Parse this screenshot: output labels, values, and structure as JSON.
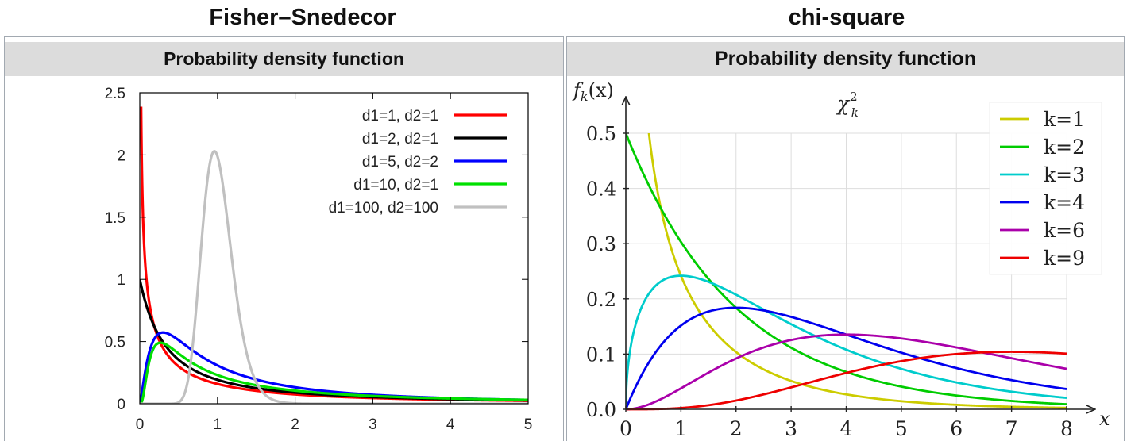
{
  "titles": {
    "left": "Fisher–Snedecor",
    "right": "chi-square"
  },
  "panels": {
    "left_header": "Probability density function",
    "right_header": "Probability density function"
  },
  "chart_data": [
    {
      "type": "line",
      "xlim": [
        0,
        5
      ],
      "ylim": [
        0,
        2.5
      ],
      "x_ticks": [
        "0",
        "1",
        "2",
        "3",
        "4",
        "5"
      ],
      "y_ticks": [
        "0",
        "0.5",
        "1",
        "1.5",
        "2",
        "2.5"
      ],
      "legend_position": "top-right",
      "grid": false,
      "series": [
        {
          "name": "d1=1, d2=1",
          "d1": 1,
          "d2": 1,
          "color": "#ff0000"
        },
        {
          "name": "d1=2, d2=1",
          "d1": 2,
          "d2": 1,
          "color": "#000000"
        },
        {
          "name": "d1=5, d2=2",
          "d1": 5,
          "d2": 2,
          "color": "#0000ff"
        },
        {
          "name": "d1=10, d2=1",
          "d1": 10,
          "d2": 1,
          "color": "#00e000"
        },
        {
          "name": "d1=100, d2=100",
          "d1": 100,
          "d2": 100,
          "color": "#c0c0c0"
        }
      ]
    },
    {
      "type": "line",
      "xlim": [
        0,
        8
      ],
      "ylim": [
        0,
        0.5
      ],
      "x_ticks": [
        "0",
        "1",
        "2",
        "3",
        "4",
        "5",
        "6",
        "7",
        "8"
      ],
      "y_ticks": [
        "0.0",
        "0.1",
        "0.2",
        "0.3",
        "0.4",
        "0.5"
      ],
      "xlabel": "x",
      "ylabel": "f",
      "ylabel_sub": "k",
      "ylabel_tail": "(x)",
      "title_base": "χ",
      "title_sup": "2",
      "title_sub": "k",
      "legend_position": "top-right",
      "grid": true,
      "series": [
        {
          "name": "k=1",
          "k": 1,
          "color": "#cccc00"
        },
        {
          "name": "k=2",
          "k": 2,
          "color": "#00cc00"
        },
        {
          "name": "k=3",
          "k": 3,
          "color": "#00cccc"
        },
        {
          "name": "k=4",
          "k": 4,
          "color": "#0000ee"
        },
        {
          "name": "k=6",
          "k": 6,
          "color": "#aa00aa"
        },
        {
          "name": "k=9",
          "k": 9,
          "color": "#ee0000"
        }
      ]
    }
  ]
}
